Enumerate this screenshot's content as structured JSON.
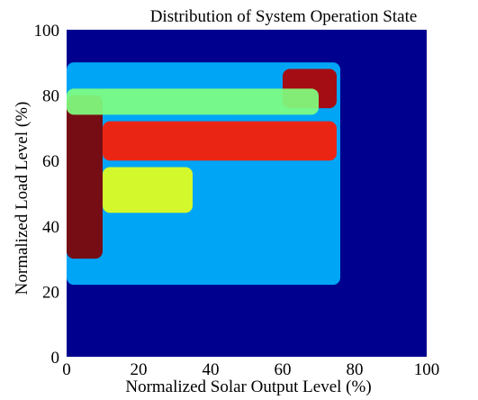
{
  "chart_data": {
    "type": "heatmap",
    "title": "Distribution of System Operation State",
    "xlabel": "Normalized Solar Output Level (%)",
    "ylabel": "Normalized Load Level (%)",
    "xlim": [
      0,
      100
    ],
    "ylim": [
      0,
      100
    ],
    "x_ticks": [
      "0",
      "20",
      "40",
      "60",
      "80",
      "100"
    ],
    "y_ticks": [
      "0",
      "20",
      "40",
      "60",
      "80",
      "100"
    ],
    "colormap": "jet",
    "background_color": "#00008f",
    "grid": false,
    "legend": "none",
    "density_regions": [
      {
        "x_range": [
          0,
          76
        ],
        "y_range": [
          22,
          90
        ],
        "level": 0.3
      },
      {
        "x_range": [
          0,
          10
        ],
        "y_range": [
          30,
          80
        ],
        "level": 1.0
      },
      {
        "x_range": [
          10,
          75
        ],
        "y_range": [
          60,
          72
        ],
        "level": 0.85
      },
      {
        "x_range": [
          10,
          35
        ],
        "y_range": [
          44,
          58
        ],
        "level": 0.6
      },
      {
        "x_range": [
          60,
          75
        ],
        "y_range": [
          76,
          88
        ],
        "level": 0.95
      },
      {
        "x_range": [
          0,
          70
        ],
        "y_range": [
          74,
          82
        ],
        "level": 0.5
      }
    ]
  }
}
